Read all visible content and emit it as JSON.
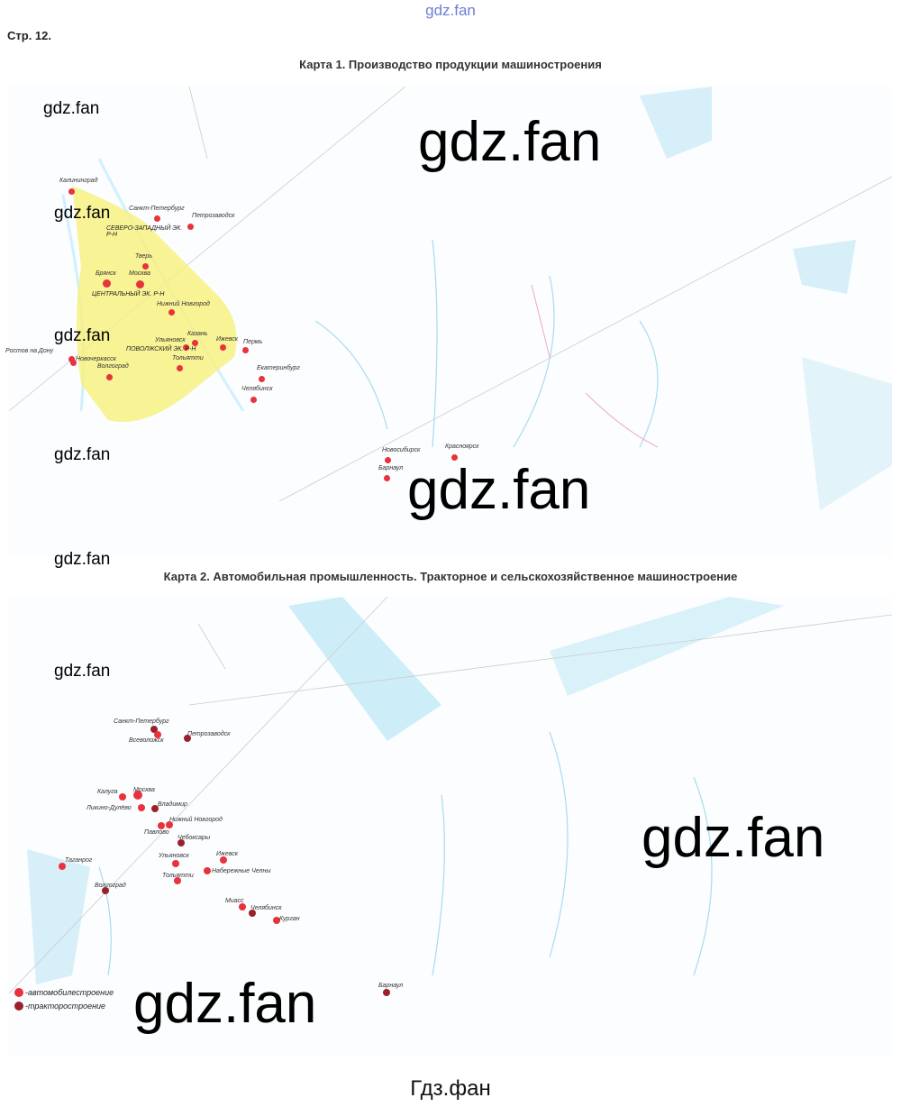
{
  "header": {
    "watermark": "gdz.fan",
    "page_label": "Стр. 12."
  },
  "map1": {
    "title": "Карта 1. Производство продукции машиностроения",
    "regions": [
      "СЕВЕРО-ЗАПАДНЫЙ ЭК. Р-Н",
      "ЦЕНТРАЛЬНЫЙ ЭК. Р-Н",
      "ПОВОЛЖСКИЙ ЭК. Р-Н"
    ],
    "cities": [
      "Калининград",
      "Санкт-Петербург",
      "Петрозаводск",
      "Тверь",
      "Брянск",
      "Москва",
      "Нижний Новгород",
      "Казань",
      "Ульяновск",
      "Ижевск",
      "Пермь",
      "Ростов на Дону",
      "Новочеркасск",
      "Тольятти",
      "Волгоград",
      "Екатеринбург",
      "Челябинск",
      "Новосибирск",
      "Барнаул",
      "Красноярск"
    ],
    "dot_color": "#e8323c",
    "region_fill": "#f7f07a"
  },
  "map2": {
    "title": "Карта 2. Автомобильная промышленность. Тракторное и сельскохозяйственное машиностроение",
    "cities": [
      {
        "name": "Санкт-Петербург",
        "type": "tractor"
      },
      {
        "name": "Всеволожск",
        "type": "auto"
      },
      {
        "name": "Петрозаводск",
        "type": "tractor"
      },
      {
        "name": "Калуга",
        "type": "auto"
      },
      {
        "name": "Москва",
        "type": "auto"
      },
      {
        "name": "Ликино-Дулёво",
        "type": "auto"
      },
      {
        "name": "Владимир",
        "type": "tractor"
      },
      {
        "name": "Нижний Новгород",
        "type": "auto"
      },
      {
        "name": "Павлово",
        "type": "auto"
      },
      {
        "name": "Чебоксары",
        "type": "tractor"
      },
      {
        "name": "Ульяновск",
        "type": "auto"
      },
      {
        "name": "Ижевск",
        "type": "auto"
      },
      {
        "name": "Набережные Челны",
        "type": "auto"
      },
      {
        "name": "Тольятти",
        "type": "auto"
      },
      {
        "name": "Таганрог",
        "type": "auto"
      },
      {
        "name": "Волгоград",
        "type": "tractor"
      },
      {
        "name": "Миасс",
        "type": "auto"
      },
      {
        "name": "Челябинск",
        "type": "tractor"
      },
      {
        "name": "Курган",
        "type": "auto"
      },
      {
        "name": "Барнаул",
        "type": "tractor"
      }
    ],
    "legend": [
      {
        "label": "-автомобилестроение",
        "color": "#e8323c"
      },
      {
        "label": "-тракторостроение",
        "color": "#9c1f2c"
      }
    ]
  },
  "watermarks": [
    "gdz.fan",
    "gdz.fan",
    "gdz.fan",
    "gdz.fan",
    "gdz.fan",
    "gdz.fan",
    "gdz.fan",
    "gdz.fan",
    "gdz.fan",
    "gdz.fan",
    "gdz.fan"
  ],
  "footer": "Гдз.фан"
}
